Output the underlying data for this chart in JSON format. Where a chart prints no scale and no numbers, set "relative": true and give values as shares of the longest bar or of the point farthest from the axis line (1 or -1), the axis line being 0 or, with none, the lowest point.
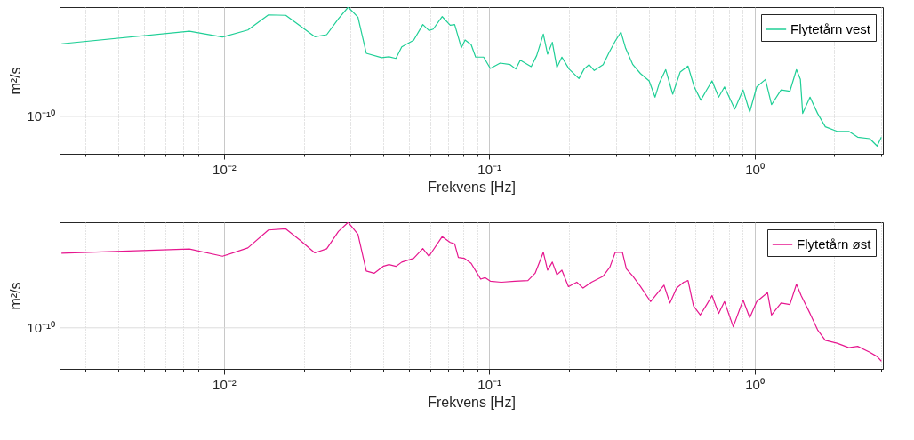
{
  "chart_data": [
    {
      "type": "line",
      "xlabel": "Frekvens [Hz]",
      "ylabel": "m²/s",
      "relative": true,
      "log": "x",
      "grid": "x",
      "legend": "top right",
      "xlim": [
        0.0024,
        3.05
      ],
      "xticks": [
        {
          "value": 0.003,
          "label": null
        },
        {
          "value": 0.004,
          "label": null
        },
        {
          "value": 0.005,
          "label": null
        },
        {
          "value": 0.006,
          "label": null
        },
        {
          "value": 0.007,
          "label": null
        },
        {
          "value": 0.008,
          "label": null
        },
        {
          "value": 0.009,
          "label": null
        },
        {
          "value": 0.01,
          "label": "10⁻²"
        },
        {
          "value": 0.02,
          "label": null
        },
        {
          "value": 0.03,
          "label": null
        },
        {
          "value": 0.04,
          "label": null
        },
        {
          "value": 0.05,
          "label": null
        },
        {
          "value": 0.06,
          "label": null
        },
        {
          "value": 0.07,
          "label": null
        },
        {
          "value": 0.08,
          "label": null
        },
        {
          "value": 0.09,
          "label": null
        },
        {
          "value": 0.1,
          "label": "10⁻¹"
        },
        {
          "value": 0.2,
          "label": null
        },
        {
          "value": 0.3,
          "label": null
        },
        {
          "value": 0.4,
          "label": null
        },
        {
          "value": 0.5,
          "label": null
        },
        {
          "value": 0.6,
          "label": null
        },
        {
          "value": 0.7,
          "label": null
        },
        {
          "value": 0.8,
          "label": null
        },
        {
          "value": 0.9,
          "label": null
        },
        {
          "value": 1,
          "label": "10⁰"
        },
        {
          "value": 2,
          "label": null
        },
        {
          "value": 3,
          "label": null
        }
      ],
      "ref_lines": [
        {
          "axis": "y",
          "value": 0.255,
          "label": "10⁻¹⁰",
          "color": "#dcdcdc"
        }
      ],
      "series": [
        {
          "name": "Flytetårn vest",
          "color": "#1fcf96",
          "x": [
            0.00244,
            0.00741,
            0.00987,
            0.0123,
            0.0147,
            0.0171,
            0.022,
            0.0244,
            0.027,
            0.0294,
            0.032,
            0.0344,
            0.0393,
            0.0419,
            0.0445,
            0.0468,
            0.0519,
            0.0562,
            0.0593,
            0.0615,
            0.0665,
            0.0713,
            0.0741,
            0.0785,
            0.0811,
            0.0855,
            0.0889,
            0.0953,
            0.101,
            0.11,
            0.12,
            0.126,
            0.131,
            0.144,
            0.151,
            0.16,
            0.166,
            0.173,
            0.18,
            0.188,
            0.2,
            0.218,
            0.228,
            0.238,
            0.249,
            0.269,
            0.283,
            0.299,
            0.314,
            0.327,
            0.348,
            0.372,
            0.401,
            0.422,
            0.439,
            0.463,
            0.492,
            0.525,
            0.562,
            0.593,
            0.628,
            0.661,
            0.692,
            0.733,
            0.771,
            0.843,
            0.906,
            0.96,
            1.02,
            1.1,
            1.16,
            1.26,
            1.36,
            1.44,
            1.49,
            1.52,
            1.62,
            1.73,
            1.85,
            2.05,
            2.27,
            2.45,
            2.72,
            2.9,
            3.01
          ],
          "values": [
            0.75,
            0.836,
            0.796,
            0.844,
            0.947,
            0.944,
            0.798,
            0.812,
            0.921,
            1,
            0.931,
            0.685,
            0.655,
            0.661,
            0.65,
            0.729,
            0.774,
            0.881,
            0.84,
            0.85,
            0.935,
            0.877,
            0.881,
            0.723,
            0.776,
            0.744,
            0.659,
            0.659,
            0.582,
            0.618,
            0.608,
            0.578,
            0.638,
            0.594,
            0.669,
            0.816,
            0.679,
            0.76,
            0.588,
            0.659,
            0.578,
            0.513,
            0.578,
            0.608,
            0.568,
            0.608,
            0.689,
            0.77,
            0.83,
            0.719,
            0.608,
            0.547,
            0.497,
            0.386,
            0.487,
            0.574,
            0.406,
            0.558,
            0.598,
            0.456,
            0.366,
            0.436,
            0.497,
            0.386,
            0.456,
            0.305,
            0.436,
            0.285,
            0.456,
            0.507,
            0.335,
            0.436,
            0.426,
            0.574,
            0.507,
            0.275,
            0.386,
            0.275,
            0.184,
            0.153,
            0.153,
            0.113,
            0.103,
            0.053,
            0.113
          ]
        }
      ]
    },
    {
      "type": "line",
      "xlabel": "Frekvens [Hz]",
      "ylabel": "m²/s",
      "relative": true,
      "log": "x",
      "grid": "x",
      "legend": "top right",
      "xlim": [
        0.0024,
        3.05
      ],
      "xticks": [
        {
          "value": 0.003,
          "label": null
        },
        {
          "value": 0.004,
          "label": null
        },
        {
          "value": 0.005,
          "label": null
        },
        {
          "value": 0.006,
          "label": null
        },
        {
          "value": 0.007,
          "label": null
        },
        {
          "value": 0.008,
          "label": null
        },
        {
          "value": 0.009,
          "label": null
        },
        {
          "value": 0.01,
          "label": "10⁻²"
        },
        {
          "value": 0.02,
          "label": null
        },
        {
          "value": 0.03,
          "label": null
        },
        {
          "value": 0.04,
          "label": null
        },
        {
          "value": 0.05,
          "label": null
        },
        {
          "value": 0.06,
          "label": null
        },
        {
          "value": 0.07,
          "label": null
        },
        {
          "value": 0.08,
          "label": null
        },
        {
          "value": 0.09,
          "label": null
        },
        {
          "value": 0.1,
          "label": "10⁻¹"
        },
        {
          "value": 0.2,
          "label": null
        },
        {
          "value": 0.3,
          "label": null
        },
        {
          "value": 0.4,
          "label": null
        },
        {
          "value": 0.5,
          "label": null
        },
        {
          "value": 0.6,
          "label": null
        },
        {
          "value": 0.7,
          "label": null
        },
        {
          "value": 0.8,
          "label": null
        },
        {
          "value": 0.9,
          "label": null
        },
        {
          "value": 1,
          "label": "10⁰"
        },
        {
          "value": 2,
          "label": null
        },
        {
          "value": 3,
          "label": null
        }
      ],
      "ref_lines": [
        {
          "axis": "y",
          "value": 0.28,
          "label": "10⁻¹⁰",
          "color": "#dcdcdc"
        }
      ],
      "series": [
        {
          "name": "Flytetårn øst",
          "color": "#e6178f",
          "x": [
            0.00244,
            0.00741,
            0.00987,
            0.0123,
            0.0147,
            0.0171,
            0.0194,
            0.022,
            0.0244,
            0.027,
            0.0294,
            0.032,
            0.0344,
            0.0368,
            0.0398,
            0.0419,
            0.0445,
            0.0468,
            0.0519,
            0.0562,
            0.0593,
            0.0665,
            0.0713,
            0.0741,
            0.0765,
            0.0805,
            0.0855,
            0.0893,
            0.0929,
            0.0964,
            0.101,
            0.111,
            0.125,
            0.14,
            0.149,
            0.16,
            0.166,
            0.173,
            0.18,
            0.188,
            0.199,
            0.214,
            0.226,
            0.243,
            0.269,
            0.285,
            0.299,
            0.318,
            0.329,
            0.348,
            0.372,
            0.406,
            0.428,
            0.456,
            0.48,
            0.509,
            0.541,
            0.562,
            0.589,
            0.625,
            0.661,
            0.692,
            0.733,
            0.771,
            0.832,
            0.906,
            0.96,
            1.02,
            1.12,
            1.16,
            1.26,
            1.36,
            1.44,
            1.5,
            1.62,
            1.73,
            1.85,
            2.05,
            2.27,
            2.45,
            2.72,
            2.9,
            3.01
          ],
          "values": [
            0.789,
            0.817,
            0.768,
            0.825,
            0.947,
            0.955,
            0.876,
            0.791,
            0.819,
            0.937,
            1,
            0.917,
            0.667,
            0.652,
            0.699,
            0.711,
            0.699,
            0.728,
            0.754,
            0.821,
            0.768,
            0.902,
            0.862,
            0.852,
            0.76,
            0.754,
            0.72,
            0.663,
            0.612,
            0.622,
            0.598,
            0.591,
            0.598,
            0.602,
            0.652,
            0.795,
            0.673,
            0.728,
            0.642,
            0.673,
            0.561,
            0.591,
            0.551,
            0.591,
            0.632,
            0.693,
            0.795,
            0.795,
            0.683,
            0.632,
            0.561,
            0.459,
            0.51,
            0.571,
            0.449,
            0.551,
            0.591,
            0.602,
            0.429,
            0.368,
            0.439,
            0.5,
            0.378,
            0.459,
            0.287,
            0.47,
            0.348,
            0.459,
            0.52,
            0.368,
            0.449,
            0.439,
            0.577,
            0.5,
            0.378,
            0.266,
            0.195,
            0.175,
            0.145,
            0.154,
            0.114,
            0.084,
            0.053
          ]
        }
      ]
    }
  ]
}
